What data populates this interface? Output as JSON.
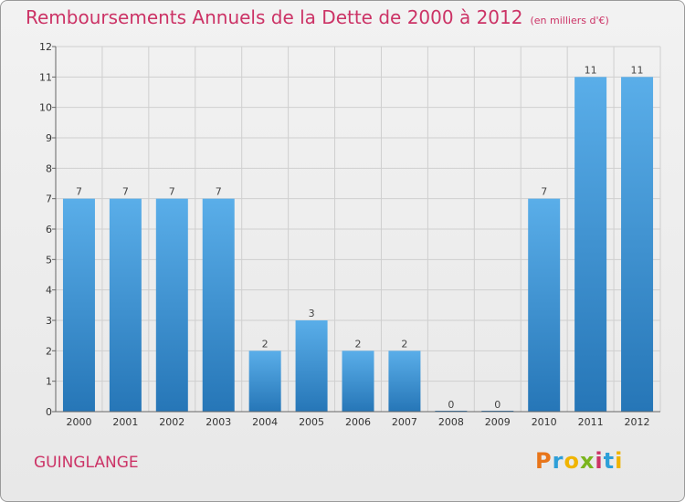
{
  "header": {
    "title": "Remboursements Annuels de la Dette de 2000 à 2012",
    "unit": "(en milliers d'€)"
  },
  "footer": {
    "commune": "GUINGLANGE",
    "logo_letters": [
      "P",
      "r",
      "o",
      "x",
      "i",
      "t",
      "i"
    ],
    "logo_colors": [
      "#e8751a",
      "#2e9fd8",
      "#f0b400",
      "#7ab51d",
      "#cc3366",
      "#2e9fd8",
      "#f0b400"
    ]
  },
  "colors": {
    "title": "#cc3366",
    "bar_light": "#5aaee9",
    "bar_dark": "#2676b7",
    "grid": "#cfcfcf"
  },
  "chart_data": {
    "type": "bar",
    "title": "Remboursements Annuels de la Dette de 2000 à 2012",
    "xlabel": "",
    "ylabel": "",
    "categories": [
      "2000",
      "2001",
      "2002",
      "2003",
      "2004",
      "2005",
      "2006",
      "2007",
      "2008",
      "2009",
      "2010",
      "2011",
      "2012"
    ],
    "values": [
      7,
      7,
      7,
      7,
      2,
      3,
      2,
      2,
      0,
      0,
      7,
      11,
      11
    ],
    "ylim": [
      0,
      12
    ],
    "yticks": [
      0,
      1,
      2,
      3,
      4,
      5,
      6,
      7,
      8,
      9,
      10,
      11,
      12
    ],
    "grid": true,
    "data_labels": true
  }
}
